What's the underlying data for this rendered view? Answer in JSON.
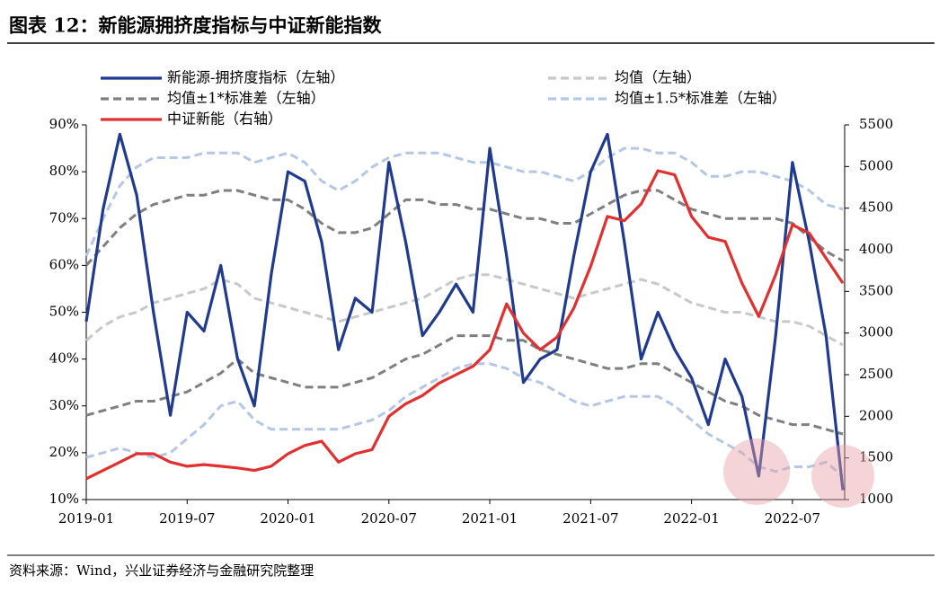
{
  "chart_data": {
    "type": "line",
    "title": "图表 12：新能源拥挤度指标与中证新能指数",
    "source": "资料来源：Wind，兴业证券经济与金融研究院整理",
    "categories": [
      "2019-01",
      null,
      null,
      null,
      null,
      null,
      "2019-07",
      null,
      null,
      null,
      null,
      null,
      "2020-01",
      null,
      null,
      null,
      null,
      null,
      "2020-07",
      null,
      null,
      null,
      null,
      null,
      "2021-01",
      null,
      null,
      null,
      null,
      null,
      "2021-07",
      null,
      null,
      null,
      null,
      null,
      "2022-01",
      null,
      null,
      null,
      null,
      null,
      "2022-07",
      null,
      null,
      null
    ],
    "ylim": [
      10,
      90
    ],
    "yticks": [
      {
        "value": 10,
        "label": "10%"
      },
      {
        "value": 20,
        "label": "20%"
      },
      {
        "value": 30,
        "label": "30%"
      },
      {
        "value": 40,
        "label": "40%"
      },
      {
        "value": 50,
        "label": "50%"
      },
      {
        "value": 60,
        "label": "60%"
      },
      {
        "value": 70,
        "label": "70%"
      },
      {
        "value": 80,
        "label": "80%"
      },
      {
        "value": 90,
        "label": "90%"
      }
    ],
    "y2lim": [
      1000,
      5500
    ],
    "y2ticks": [
      1000,
      1500,
      2000,
      2500,
      3000,
      3500,
      4000,
      4500,
      5000,
      5500
    ],
    "series": [
      {
        "name": "均值（左轴）",
        "color": "#c8c8c8",
        "dash": true,
        "values": [
          44,
          47,
          49,
          50,
          52,
          53,
          54,
          55,
          57,
          56,
          53,
          52,
          51,
          50,
          49,
          48,
          49,
          50,
          51,
          52,
          53,
          55,
          57,
          58,
          58,
          57,
          56,
          55,
          54,
          53,
          54,
          55,
          56,
          57,
          56,
          54,
          52,
          51,
          50,
          50,
          49,
          48,
          48,
          47,
          45,
          43
        ]
      },
      {
        "name": "均值±1*标准差（左轴）",
        "color": "#7f7f7f",
        "dash": true,
        "values": [
          60,
          64,
          68,
          71,
          73,
          74,
          75,
          75,
          76,
          76,
          75,
          74,
          74,
          72,
          69,
          67,
          67,
          68,
          71,
          74,
          74,
          73,
          73,
          72,
          72,
          71,
          70,
          70,
          69,
          69,
          71,
          73,
          75,
          76,
          76,
          74,
          72,
          71,
          70,
          70,
          70,
          70,
          69,
          66,
          63,
          61
        ]
      },
      {
        "name": "均值±1*标准差（左轴）",
        "color": "#7f7f7f",
        "dash": true,
        "values": [
          28,
          29,
          30,
          31,
          31,
          32,
          33,
          35,
          37,
          40,
          37,
          36,
          35,
          34,
          34,
          34,
          35,
          36,
          38,
          40,
          41,
          43,
          45,
          45,
          45,
          44,
          44,
          42,
          41,
          40,
          39,
          38,
          38,
          39,
          39,
          37,
          35,
          33,
          31,
          30,
          28,
          27,
          26,
          26,
          25,
          24
        ]
      },
      {
        "name": "均值±1.5*标准差（左轴）",
        "color": "#b4c7e7",
        "dash": true,
        "values": [
          62,
          70,
          77,
          81,
          83,
          83,
          83,
          84,
          84,
          84,
          82,
          83,
          84,
          82,
          78,
          76,
          78,
          81,
          83,
          84,
          84,
          84,
          83,
          82,
          82,
          81,
          80,
          80,
          79,
          78,
          80,
          83,
          85,
          85,
          84,
          84,
          82,
          79,
          79,
          80,
          80,
          79,
          78,
          76,
          73,
          72
        ]
      },
      {
        "name": "均值±1.5*标准差（左轴）",
        "color": "#b4c7e7",
        "dash": true,
        "values": [
          19,
          20,
          21,
          20,
          19,
          20,
          23,
          26,
          30,
          31,
          27,
          25,
          25,
          25,
          25,
          25,
          26,
          27,
          29,
          32,
          34,
          36,
          38,
          39,
          39,
          38,
          36,
          35,
          33,
          31,
          30,
          31,
          32,
          32,
          32,
          30,
          27,
          24,
          22,
          20,
          17,
          16,
          17,
          17,
          18,
          15
        ]
      },
      {
        "name": "新能源-拥挤度指标（左轴）",
        "color": "#1f3a8f",
        "dash": false,
        "values": [
          48,
          72,
          88,
          75,
          50,
          28,
          50,
          46,
          60,
          40,
          30,
          58,
          80,
          78,
          65,
          42,
          53,
          50,
          82,
          65,
          45,
          50,
          56,
          50,
          85,
          62,
          35,
          40,
          42,
          62,
          80,
          88,
          65,
          40,
          50,
          42,
          36,
          26,
          40,
          32,
          15,
          45,
          82,
          65,
          45,
          12
        ]
      },
      {
        "name": "中证新能（右轴）",
        "color": "#e03030",
        "dash": false,
        "axis": "y2",
        "values": [
          1250,
          1350,
          1450,
          1550,
          1550,
          1450,
          1400,
          1420,
          1400,
          1380,
          1350,
          1400,
          1550,
          1650,
          1700,
          1450,
          1550,
          1600,
          2000,
          2150,
          2250,
          2400,
          2500,
          2600,
          2800,
          3350,
          3000,
          2800,
          2950,
          3300,
          3800,
          4400,
          4350,
          4550,
          4950,
          4900,
          4400,
          4150,
          4100,
          3600,
          3200,
          3700,
          4300,
          4200,
          3900,
          3600
        ]
      }
    ]
  }
}
